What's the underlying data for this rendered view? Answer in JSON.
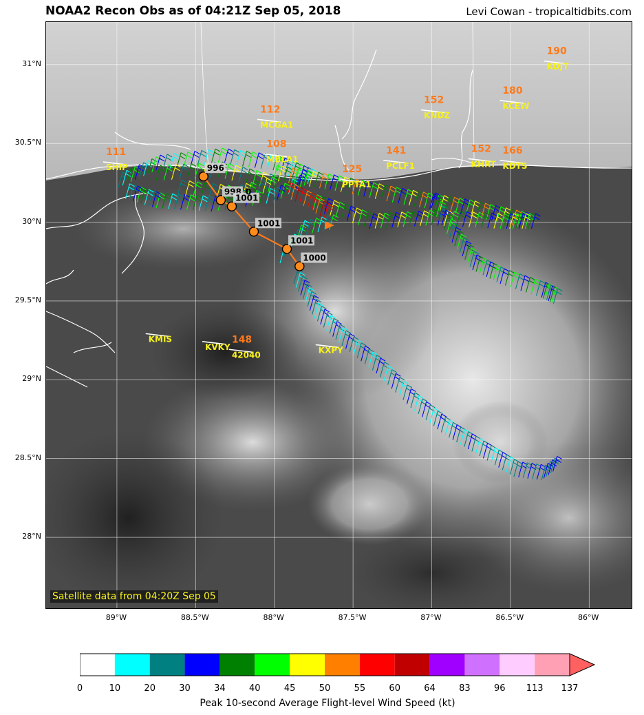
{
  "header": {
    "title": "NOAA2 Recon Obs as of 04:21Z Sep 05, 2018",
    "credit": "Levi Cowan - tropicaltidbits.com"
  },
  "map": {
    "satellite_note": "Satellite data from 04:20Z Sep 05",
    "lon_min": -89.45,
    "lon_max": -85.73,
    "lat_min": 27.55,
    "lat_max": 31.27,
    "lat_ticks": [
      {
        "value": 31.0,
        "label": "31°N"
      },
      {
        "value": 30.5,
        "label": "30.5°N"
      },
      {
        "value": 30.0,
        "label": "30°N"
      },
      {
        "value": 29.5,
        "label": "29.5°N"
      },
      {
        "value": 29.0,
        "label": "29°N"
      },
      {
        "value": 28.5,
        "label": "28.5°N"
      },
      {
        "value": 28.0,
        "label": "28°N"
      }
    ],
    "lon_ticks": [
      {
        "value": -89.0,
        "label": "89°W"
      },
      {
        "value": -88.5,
        "label": "88.5°W"
      },
      {
        "value": -88.0,
        "label": "88°W"
      },
      {
        "value": -87.5,
        "label": "87.5°W"
      },
      {
        "value": -87.0,
        "label": "87°W"
      },
      {
        "value": -86.5,
        "label": "86.5°W"
      },
      {
        "value": -86.0,
        "label": "86°W"
      }
    ],
    "pressure_track": [
      {
        "lon": -88.45,
        "lat": 30.29,
        "label": "996"
      },
      {
        "lon": -88.34,
        "lat": 30.14,
        "label": "998"
      },
      {
        "lon": -88.27,
        "lat": 30.1,
        "label": "1001"
      },
      {
        "lon": -88.13,
        "lat": 29.94,
        "label": "1001"
      },
      {
        "lon": -87.92,
        "lat": 29.83,
        "label": "1001"
      },
      {
        "lon": -87.84,
        "lat": 29.72,
        "label": "1000"
      }
    ],
    "extra_label": "0",
    "stations": [
      {
        "id": "KDJT",
        "lon": -86.2,
        "lat": 30.97,
        "peak": "190"
      },
      {
        "id": "KCEW",
        "lon": -86.48,
        "lat": 30.72,
        "peak": "180"
      },
      {
        "id": "KNDZ",
        "lon": -86.98,
        "lat": 30.66,
        "peak": "152"
      },
      {
        "id": "MCGA1",
        "lon": -88.02,
        "lat": 30.6,
        "peak": "112"
      },
      {
        "id": "MBLA1",
        "lon": -87.98,
        "lat": 30.38,
        "peak": "108"
      },
      {
        "id": "SHIP",
        "lon": -89.0,
        "lat": 30.33,
        "peak": "111"
      },
      {
        "id": "PCLF1",
        "lon": -87.22,
        "lat": 30.34,
        "peak": "141"
      },
      {
        "id": "PPTA1",
        "lon": -87.5,
        "lat": 30.22,
        "peak": "125"
      },
      {
        "id": "KHRT",
        "lon": -86.68,
        "lat": 30.35,
        "peak": "152"
      },
      {
        "id": "KDTS",
        "lon": -86.48,
        "lat": 30.34,
        "peak": "166"
      },
      {
        "id": "KMIS",
        "lon": -88.73,
        "lat": 29.24,
        "peak": ""
      },
      {
        "id": "KVKY",
        "lon": -88.37,
        "lat": 29.19,
        "peak": ""
      },
      {
        "id": "42040",
        "lon": -88.2,
        "lat": 29.14,
        "peak": "148"
      },
      {
        "id": "KXPY",
        "lon": -87.65,
        "lat": 29.17,
        "peak": ""
      }
    ]
  },
  "colorbar": {
    "title": "Peak 10-second Average Flight-level Wind Speed (kt)",
    "bins": [
      {
        "color": "#ffffff"
      },
      {
        "color": "#00ffff"
      },
      {
        "color": "#008080"
      },
      {
        "color": "#0000ff"
      },
      {
        "color": "#008000"
      },
      {
        "color": "#00ff00"
      },
      {
        "color": "#ffff00"
      },
      {
        "color": "#ff8000"
      },
      {
        "color": "#ff0000"
      },
      {
        "color": "#c00000"
      },
      {
        "color": "#a000ff"
      },
      {
        "color": "#d070ff"
      },
      {
        "color": "#ffccff"
      },
      {
        "color": "#ffa0b4"
      }
    ],
    "arrow_color": "#ff6060",
    "ticks": [
      "0",
      "10",
      "20",
      "30",
      "34",
      "40",
      "45",
      "50",
      "55",
      "60",
      "64",
      "83",
      "96",
      "113",
      "137"
    ]
  }
}
